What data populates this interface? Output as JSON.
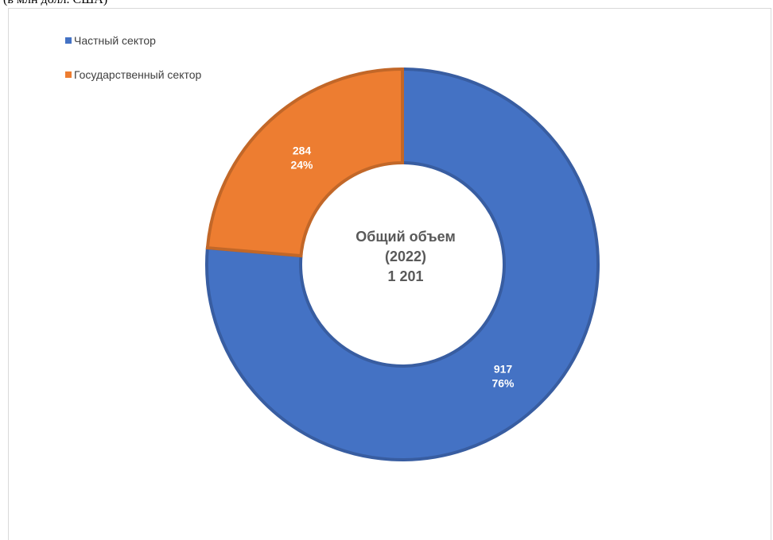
{
  "caption": "(в млн долл. США)",
  "chart_data": {
    "type": "pie",
    "donut": true,
    "categories": [
      "Частный сектор",
      "Государственный сектор"
    ],
    "values": [
      917,
      284
    ],
    "percent_labels": [
      "76%",
      "24%"
    ],
    "value_labels": [
      "917",
      "284"
    ],
    "colors": [
      "#4472c4",
      "#ed7d31"
    ],
    "center_label": [
      "Общий объем",
      "(2022)",
      "1 201"
    ],
    "legend_position": "top-left"
  }
}
